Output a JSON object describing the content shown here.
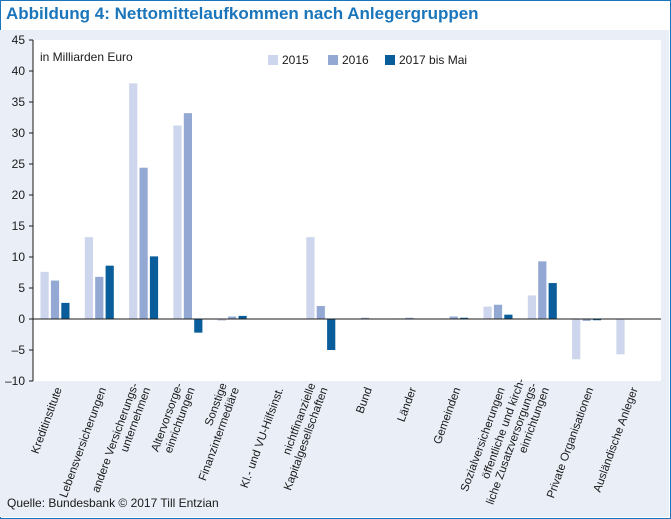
{
  "page": {
    "title": "Abbildung 4: Nettomittelaufkommen nach Anlegergruppen",
    "source": "Quelle: Bundesbank © 2017 Till Entzian"
  },
  "colors": {
    "title": "#1b75bb",
    "panel": "#e9eef7",
    "series": [
      "#cdd6ec",
      "#93a9d3",
      "#0a5d9b"
    ]
  },
  "chart_data": {
    "type": "bar",
    "title": "",
    "unit_label": "in Milliarden Euro",
    "ylim": [
      -10,
      45
    ],
    "yticks": [
      -10,
      -5,
      0,
      5,
      10,
      15,
      20,
      25,
      30,
      35,
      40,
      45
    ],
    "ytick_labels": [
      "–10",
      "–5",
      "0",
      "5",
      "10",
      "15",
      "20",
      "25",
      "30",
      "35",
      "40",
      "45"
    ],
    "grid": false,
    "legend_position": "top-right",
    "categories": [
      [
        "Kreditinstitute"
      ],
      [
        "Lebensversicherungen"
      ],
      [
        "andere Versicherungs-",
        "unternehmen"
      ],
      [
        "Altervorsorge-",
        "einrichtungen"
      ],
      [
        "Sonstige",
        "Finanzintermediäre"
      ],
      [
        "Kl.- und VU-Hilfsinst."
      ],
      [
        "nichtfinanzielle",
        "Kapitalgesellschaften"
      ],
      [
        "Bund"
      ],
      [
        "Länder"
      ],
      [
        "Gemeinden"
      ],
      [
        "Sozialversicherungen"
      ],
      [
        "öffentliche und kirch-",
        "liche Zusatzversorgungs-",
        "einrichtungen"
      ],
      [
        "Private Organisationen"
      ],
      [
        "Ausländische Anleger"
      ]
    ],
    "series": [
      {
        "name": "2015",
        "values": [
          7.6,
          13.2,
          38.0,
          31.2,
          -0.3,
          0.0,
          13.2,
          0.0,
          0.1,
          0.1,
          2.0,
          3.8,
          -6.5,
          -5.7
        ]
      },
      {
        "name": "2016",
        "values": [
          6.2,
          6.8,
          24.4,
          33.2,
          0.4,
          0.0,
          2.1,
          0.2,
          0.2,
          0.4,
          2.3,
          9.3,
          -0.3,
          0.0
        ]
      },
      {
        "name": "2017 bis Mai",
        "values": [
          2.6,
          8.6,
          10.1,
          -2.2,
          0.5,
          0.0,
          -5.0,
          0.0,
          0.0,
          0.2,
          0.7,
          5.8,
          -0.2,
          0.0
        ]
      }
    ]
  }
}
